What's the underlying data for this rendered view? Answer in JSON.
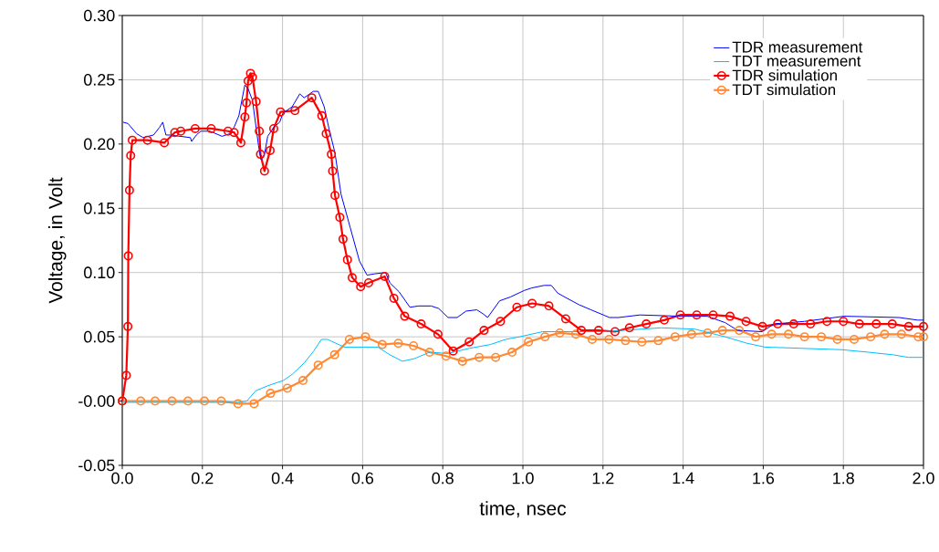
{
  "chart_data": {
    "type": "line",
    "xlabel": "time, nsec",
    "ylabel": "Voltage, in Volt",
    "xlim": [
      0,
      2.0
    ],
    "ylim": [
      -0.05,
      0.3
    ],
    "xticks": [
      {
        "value": 0,
        "label": "0.0"
      },
      {
        "value": 0.2,
        "label": "0.2"
      },
      {
        "value": 0.4,
        "label": "0.4"
      },
      {
        "value": 0.6,
        "label": "0.6"
      },
      {
        "value": 0.8,
        "label": "0.8"
      },
      {
        "value": 1.0,
        "label": "1.0"
      },
      {
        "value": 1.2,
        "label": "1.2"
      },
      {
        "value": 1.4,
        "label": "1.4"
      },
      {
        "value": 1.6,
        "label": "1.6"
      },
      {
        "value": 1.8,
        "label": "1.8"
      },
      {
        "value": 2.0,
        "label": "2.0"
      }
    ],
    "yticks": [
      {
        "value": -0.05,
        "label": "-0.05"
      },
      {
        "value": 0,
        "label": "-0.00"
      },
      {
        "value": 0.05,
        "label": "0.05"
      },
      {
        "value": 0.1,
        "label": "0.10"
      },
      {
        "value": 0.15,
        "label": "0.15"
      },
      {
        "value": 0.2,
        "label": "0.20"
      },
      {
        "value": 0.25,
        "label": "0.25"
      },
      {
        "value": 0.3,
        "label": "0.30"
      }
    ],
    "grid": true,
    "legend": "top right",
    "series": [
      {
        "name": "TDR measurement",
        "color": "#0000ff",
        "marker": "none",
        "x": [
          0.002,
          0.014,
          0.036,
          0.052,
          0.078,
          0.093,
          0.101,
          0.109,
          0.12,
          0.17,
          0.173,
          0.185,
          0.196,
          0.219,
          0.249,
          0.268,
          0.279,
          0.291,
          0.306,
          0.314,
          0.325,
          0.34,
          0.346,
          0.355,
          0.363,
          0.378,
          0.393,
          0.401,
          0.424,
          0.443,
          0.454,
          0.477,
          0.489,
          0.504,
          0.516,
          0.531,
          0.546,
          0.569,
          0.592,
          0.611,
          0.63,
          0.657,
          0.668,
          0.691,
          0.718,
          0.74,
          0.771,
          0.79,
          0.813,
          0.836,
          0.858,
          0.885,
          0.9,
          0.912,
          0.942,
          0.969,
          1.003,
          1.022,
          1.053,
          1.071,
          1.087,
          1.11,
          1.14,
          1.17,
          1.201,
          1.216,
          1.239,
          1.292,
          1.395,
          1.46,
          1.505,
          1.536,
          1.597,
          1.627,
          1.703,
          1.802,
          1.939,
          1.985,
          2.0
        ],
        "values": [
          0.217,
          0.216,
          0.208,
          0.205,
          0.207,
          0.213,
          0.217,
          0.207,
          0.207,
          0.205,
          0.202,
          0.207,
          0.21,
          0.21,
          0.206,
          0.208,
          0.213,
          0.222,
          0.246,
          0.243,
          0.234,
          0.199,
          0.188,
          0.192,
          0.206,
          0.213,
          0.217,
          0.224,
          0.229,
          0.239,
          0.236,
          0.241,
          0.241,
          0.229,
          0.212,
          0.193,
          0.161,
          0.135,
          0.109,
          0.098,
          0.099,
          0.1,
          0.092,
          0.085,
          0.073,
          0.074,
          0.074,
          0.072,
          0.065,
          0.065,
          0.07,
          0.071,
          0.068,
          0.065,
          0.078,
          0.081,
          0.086,
          0.088,
          0.09,
          0.09,
          0.084,
          0.08,
          0.075,
          0.071,
          0.067,
          0.065,
          0.065,
          0.067,
          0.066,
          0.066,
          0.061,
          0.055,
          0.054,
          0.06,
          0.062,
          0.066,
          0.065,
          0.063,
          0.063
        ]
      },
      {
        "name": "TDT measurement",
        "color": "#00bfff",
        "marker": "none",
        "x": [
          0,
          0.288,
          0.311,
          0.333,
          0.364,
          0.402,
          0.425,
          0.455,
          0.478,
          0.497,
          0.512,
          0.554,
          0.638,
          0.668,
          0.699,
          0.729,
          0.767,
          0.813,
          0.866,
          0.919,
          0.957,
          0.992,
          1.049,
          1.201,
          1.345,
          1.429,
          1.505,
          1.559,
          1.604,
          1.795,
          1.863,
          1.924,
          1.962,
          2.0
        ],
        "values": [
          -0.001,
          -0.001,
          0,
          0.008,
          0.012,
          0.016,
          0.021,
          0.03,
          0.039,
          0.048,
          0.048,
          0.042,
          0.042,
          0.036,
          0.031,
          0.033,
          0.038,
          0.037,
          0.041,
          0.044,
          0.048,
          0.05,
          0.054,
          0.054,
          0.057,
          0.056,
          0.05,
          0.045,
          0.042,
          0.04,
          0.038,
          0.036,
          0.034,
          0.034
        ]
      },
      {
        "name": "TDR simulation",
        "color": "#ff0000",
        "marker": "circle",
        "x": [
          0,
          0.01,
          0.014,
          0.015,
          0.018,
          0.021,
          0.025,
          0.063,
          0.105,
          0.131,
          0.146,
          0.182,
          0.222,
          0.264,
          0.279,
          0.296,
          0.306,
          0.31,
          0.314,
          0.32,
          0.325,
          0.334,
          0.342,
          0.345,
          0.355,
          0.369,
          0.378,
          0.395,
          0.431,
          0.473,
          0.498,
          0.509,
          0.522,
          0.525,
          0.531,
          0.543,
          0.551,
          0.562,
          0.574,
          0.595,
          0.615,
          0.655,
          0.678,
          0.705,
          0.746,
          0.788,
          0.826,
          0.866,
          0.903,
          0.944,
          0.985,
          1.023,
          1.065,
          1.107,
          1.146,
          1.189,
          1.23,
          1.266,
          1.308,
          1.353,
          1.393,
          1.434,
          1.475,
          1.517,
          1.557,
          1.598,
          1.636,
          1.676,
          1.718,
          1.759,
          1.8,
          1.84,
          1.882,
          1.922,
          1.963,
          2.0
        ],
        "values": [
          0,
          0.02,
          0.058,
          0.113,
          0.164,
          0.191,
          0.203,
          0.203,
          0.201,
          0.209,
          0.21,
          0.212,
          0.212,
          0.21,
          0.209,
          0.201,
          0.221,
          0.232,
          0.249,
          0.255,
          0.252,
          0.233,
          0.21,
          0.192,
          0.179,
          0.195,
          0.212,
          0.225,
          0.226,
          0.236,
          0.222,
          0.208,
          0.192,
          0.179,
          0.16,
          0.143,
          0.126,
          0.11,
          0.096,
          0.089,
          0.092,
          0.097,
          0.08,
          0.066,
          0.06,
          0.052,
          0.039,
          0.046,
          0.055,
          0.062,
          0.073,
          0.076,
          0.074,
          0.064,
          0.055,
          0.055,
          0.054,
          0.057,
          0.06,
          0.063,
          0.067,
          0.067,
          0.067,
          0.066,
          0.062,
          0.058,
          0.06,
          0.06,
          0.06,
          0.062,
          0.062,
          0.06,
          0.06,
          0.06,
          0.058,
          0.058
        ]
      },
      {
        "name": "TDT simulation",
        "color": "#ff8833",
        "marker": "circle",
        "x": [
          0,
          0.046,
          0.082,
          0.124,
          0.164,
          0.205,
          0.247,
          0.289,
          0.329,
          0.37,
          0.412,
          0.451,
          0.489,
          0.53,
          0.567,
          0.607,
          0.649,
          0.689,
          0.727,
          0.767,
          0.808,
          0.849,
          0.891,
          0.932,
          0.973,
          1.014,
          1.055,
          1.092,
          1.132,
          1.173,
          1.215,
          1.256,
          1.297,
          1.338,
          1.38,
          1.421,
          1.461,
          1.498,
          1.54,
          1.581,
          1.621,
          1.663,
          1.703,
          1.745,
          1.785,
          1.827,
          1.868,
          1.903,
          1.945,
          1.987,
          2.0
        ],
        "values": [
          0,
          0,
          0,
          0,
          0,
          0,
          0,
          -0.002,
          -0.002,
          0.006,
          0.01,
          0.016,
          0.028,
          0.036,
          0.048,
          0.05,
          0.044,
          0.045,
          0.043,
          0.038,
          0.035,
          0.031,
          0.034,
          0.034,
          0.038,
          0.046,
          0.05,
          0.053,
          0.052,
          0.048,
          0.048,
          0.047,
          0.046,
          0.047,
          0.05,
          0.052,
          0.053,
          0.055,
          0.055,
          0.05,
          0.052,
          0.052,
          0.05,
          0.05,
          0.048,
          0.048,
          0.05,
          0.052,
          0.052,
          0.05,
          0.05
        ]
      }
    ]
  }
}
